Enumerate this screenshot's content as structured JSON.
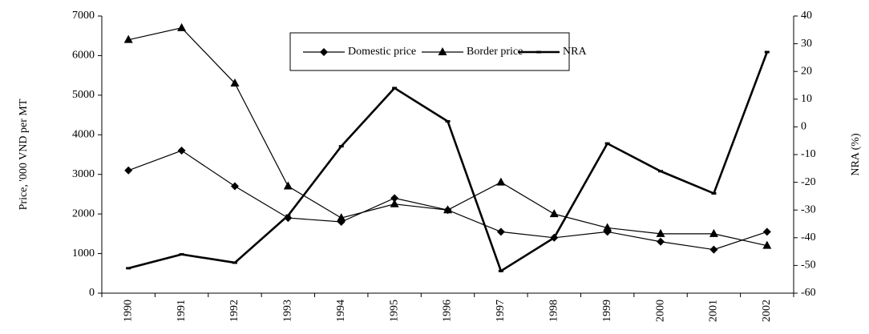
{
  "chart_data": {
    "type": "line",
    "categories": [
      "1990",
      "1991",
      "1992",
      "1993",
      "1994",
      "1995",
      "1996",
      "1997",
      "1998",
      "1999",
      "2000",
      "2001",
      "2002"
    ],
    "series": [
      {
        "name": "Domestic price",
        "color": "#000000",
        "marker": "diamond",
        "values": [
          3100,
          3600,
          2700,
          1900,
          1800,
          2400,
          2100,
          1550,
          1400,
          1550,
          1300,
          1100,
          1550
        ]
      },
      {
        "name": "Border price",
        "color": "#000000",
        "marker": "triangle",
        "values": [
          6400,
          6700,
          5300,
          2700,
          1900,
          2250,
          2100,
          2800,
          2000,
          1650,
          1500,
          1500,
          1200
        ]
      },
      {
        "name": "NRA",
        "color": "#000000",
        "marker": "dash",
        "axis": "y2",
        "values": [
          -51,
          -46,
          -49,
          -32,
          -7,
          14,
          2,
          -52,
          -40,
          -6,
          -16,
          -24,
          27
        ]
      }
    ],
    "y_label": "Price,  '000 VND per MT",
    "y2_label": "NRA  (%)",
    "ylim": [
      0,
      7000
    ],
    "yticks": [
      0,
      1000,
      2000,
      3000,
      4000,
      5000,
      6000,
      7000
    ],
    "y2lim": [
      -60,
      40
    ],
    "y2ticks": [
      -60,
      -50,
      -40,
      -30,
      -20,
      -10,
      0,
      10,
      20,
      30,
      40
    ],
    "legend": "top"
  }
}
